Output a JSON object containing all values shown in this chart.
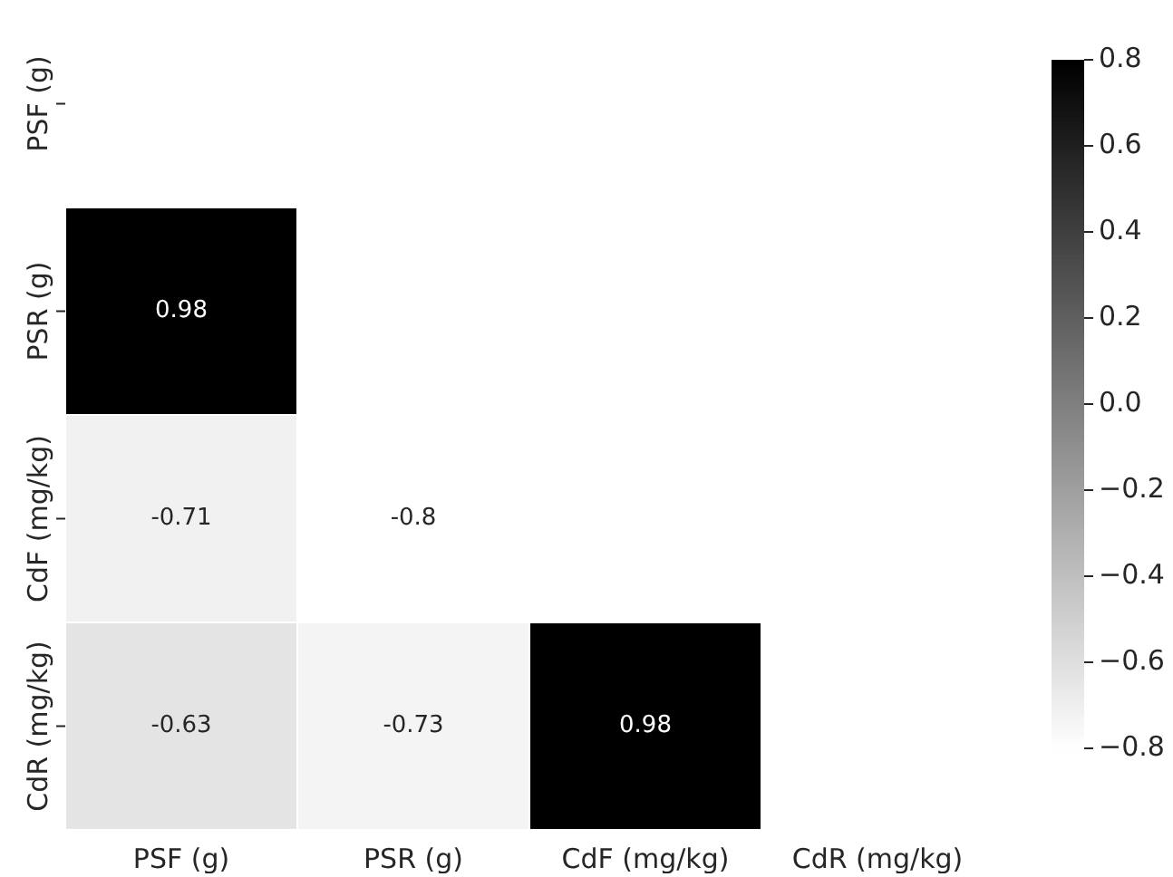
{
  "chart_data": {
    "type": "heatmap",
    "categories": [
      "PSF (g)",
      "PSR (g)",
      "CdF (mg/kg)",
      "CdR (mg/kg)"
    ],
    "y_categories": [
      "PSF (g)",
      "PSR (g)",
      "CdF (mg/kg)",
      "CdR (mg/kg)"
    ],
    "cells": [
      [
        null,
        null,
        null,
        null
      ],
      [
        0.98,
        null,
        null,
        null
      ],
      [
        -0.71,
        -0.8,
        null,
        null
      ],
      [
        -0.63,
        -0.73,
        0.98,
        null
      ]
    ],
    "data_labels": true,
    "clim": [
      -0.8,
      0.8
    ],
    "cticks": [
      {
        "value": -0.8,
        "label": "−0.8"
      },
      {
        "value": -0.6,
        "label": "−0.6"
      },
      {
        "value": -0.4,
        "label": "−0.4"
      },
      {
        "value": -0.2,
        "label": "−0.2"
      },
      {
        "value": 0,
        "label": "0.0"
      },
      {
        "value": 0.2,
        "label": "0.2"
      },
      {
        "value": 0.4,
        "label": "0.4"
      },
      {
        "value": 0.6,
        "label": "0.6"
      },
      {
        "value": 0.8,
        "label": "0.8"
      }
    ]
  }
}
